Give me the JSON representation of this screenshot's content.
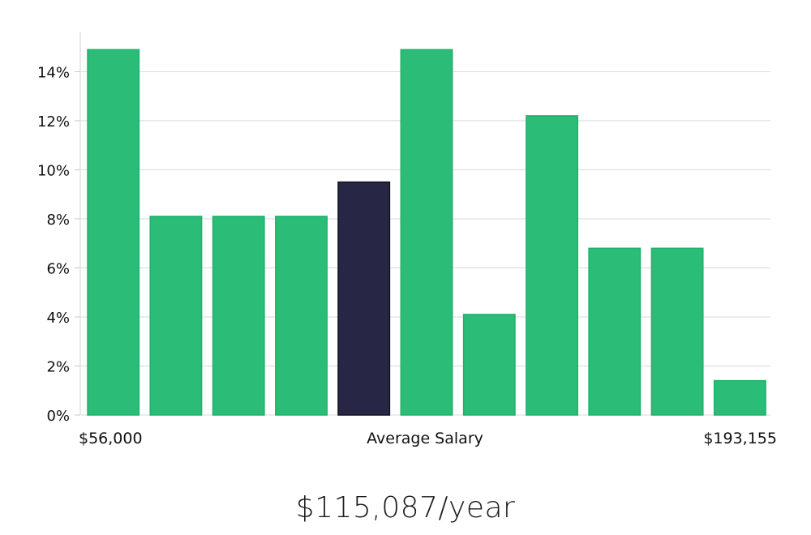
{
  "chart_data": {
    "type": "bar",
    "values": [
      14.9,
      8.1,
      8.1,
      8.1,
      9.5,
      14.9,
      4.1,
      12.2,
      6.8,
      6.8,
      1.4
    ],
    "highlight_index": 4,
    "ylim": [
      0,
      15.6
    ],
    "yticks": [
      "0%",
      "2%",
      "4%",
      "6%",
      "8%",
      "10%",
      "12%",
      "14%"
    ],
    "ytick_values": [
      0,
      2,
      4,
      6,
      8,
      10,
      12,
      14
    ],
    "x_labels": {
      "left": "$56,000",
      "center": "Average Salary",
      "right": "$193,155"
    },
    "grid": true,
    "colors": {
      "bar": "#2bbd77",
      "highlight": "#282645",
      "grid": "#d9d9d9"
    }
  },
  "summary": {
    "average_salary": "$115,087/year"
  }
}
